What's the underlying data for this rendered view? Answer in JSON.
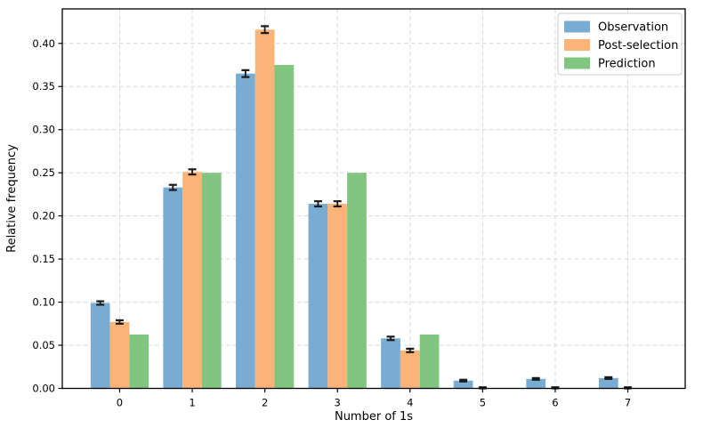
{
  "chart_data": {
    "type": "bar",
    "title": "",
    "xlabel": "Number of 1s",
    "ylabel": "Relative frequency",
    "categories": [
      "0",
      "1",
      "2",
      "3",
      "4",
      "5",
      "6",
      "7"
    ],
    "series": [
      {
        "name": "Observation",
        "color": "#79acd2",
        "values": [
          0.099,
          0.233,
          0.365,
          0.214,
          0.058,
          0.009,
          0.011,
          0.012
        ],
        "errors": [
          0.002,
          0.003,
          0.004,
          0.003,
          0.002,
          0.001,
          0.001,
          0.001
        ]
      },
      {
        "name": "Post-selection",
        "color": "#fbb377",
        "values": [
          0.077,
          0.251,
          0.416,
          0.214,
          0.044,
          0.0005,
          0.0005,
          0.0005
        ],
        "errors": [
          0.002,
          0.003,
          0.004,
          0.003,
          0.002,
          0.0008,
          0.0008,
          0.0008
        ]
      },
      {
        "name": "Prediction",
        "color": "#80c680",
        "values": [
          0.0625,
          0.25,
          0.375,
          0.25,
          0.0625,
          0,
          0,
          0
        ],
        "errors": null
      }
    ],
    "ylim": [
      0,
      0.44
    ],
    "ytick_step": 0.05,
    "ytick_format_decimals": 2,
    "grid": true,
    "grid_style": "dashed",
    "legend_position": "upper right",
    "colors": {
      "grid": "#d9d9d9",
      "axis": "#000000",
      "error_bar": "#1a1a1a",
      "legend_border": "#cccccc",
      "background": "#ffffff"
    }
  }
}
